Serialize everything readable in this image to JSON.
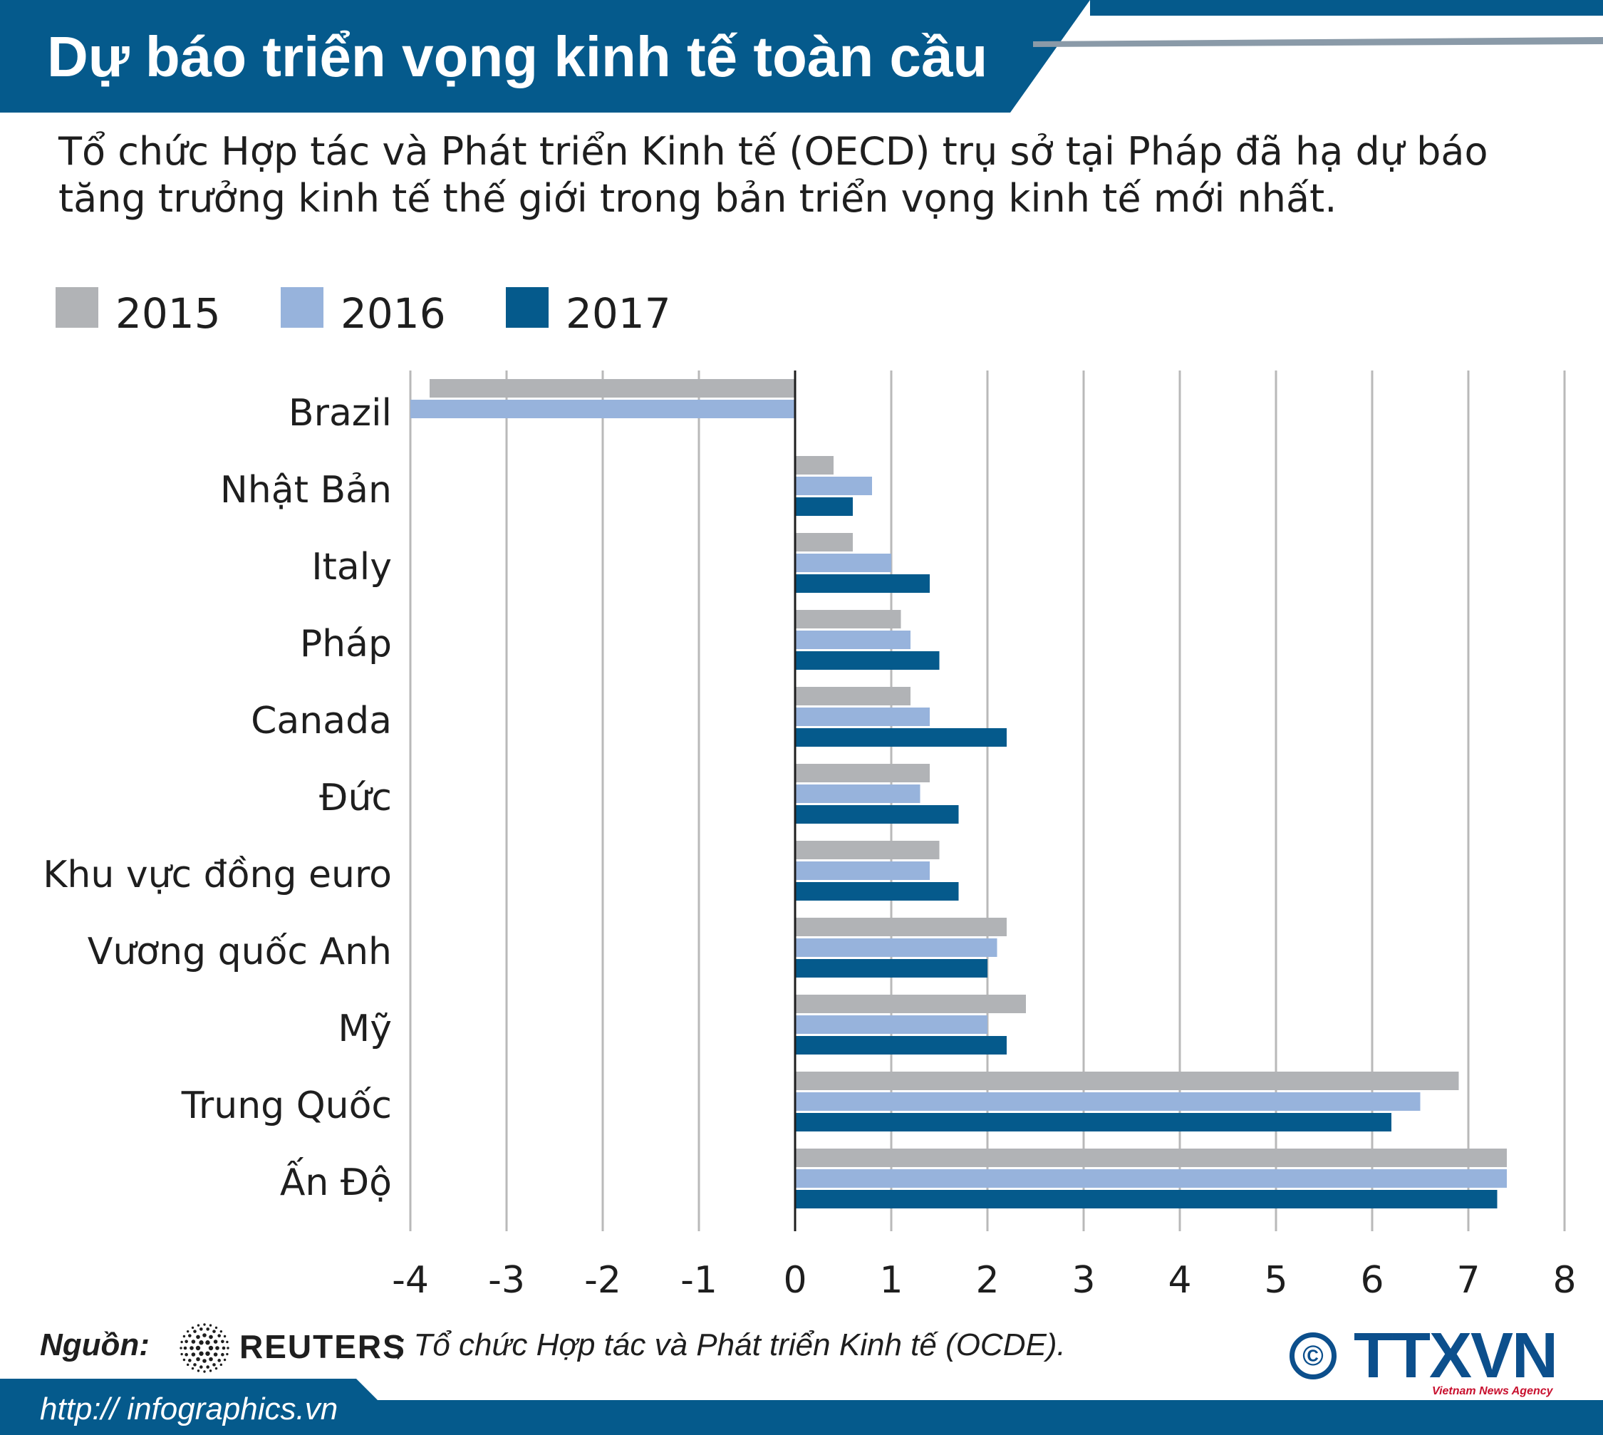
{
  "header": {
    "title": "Dự báo triển vọng kinh tế toàn cầu"
  },
  "subtitle": "Tổ chức Hợp tác và Phát triển Kinh tế (OECD) trụ sở tại Pháp đã hạ dự báo tăng trưởng kinh tế thế giới trong bản triển vọng kinh tế mới nhất.",
  "colors": {
    "header_bg": "#055a8c",
    "header_line": "#8a9aa8",
    "footer_bg": "#055a8c",
    "grid": "#b9b9b9",
    "axis": "#1e1e1e",
    "text": "#1e1e1e"
  },
  "chart_data": {
    "type": "bar",
    "orientation": "horizontal",
    "categories": [
      "Brazil",
      "Nhật Bản",
      "Italy",
      "Pháp",
      "Canada",
      "Đức",
      "Khu vực đồng euro",
      "Vương quốc Anh",
      "Mỹ",
      "Trung Quốc",
      "Ấn Độ"
    ],
    "series": [
      {
        "name": "2015",
        "color": "#b1b3b6",
        "values": [
          -3.8,
          0.4,
          0.6,
          1.1,
          1.2,
          1.4,
          1.5,
          2.2,
          2.4,
          6.9,
          7.4
        ]
      },
      {
        "name": "2016",
        "color": "#97b3dc",
        "values": [
          -4.0,
          0.8,
          1.0,
          1.2,
          1.4,
          1.3,
          1.4,
          2.1,
          2.0,
          6.5,
          7.4
        ]
      },
      {
        "name": "2017",
        "color": "#055a8c",
        "values": [
          null,
          0.6,
          1.4,
          1.5,
          2.2,
          1.7,
          1.7,
          2.0,
          2.2,
          6.2,
          7.3
        ]
      }
    ],
    "xlim": [
      -4,
      8
    ],
    "xticks": [
      "-4",
      "-3",
      "-2",
      "-1",
      "0",
      "1",
      "2",
      "3",
      "4",
      "5",
      "6",
      "7",
      "8"
    ],
    "grid": true,
    "legend_position": "top-left"
  },
  "source": {
    "label": "Nguồn:",
    "logo_icon": "reuters-dots-icon",
    "reuters": "REUTERS",
    "rest": "; Tổ chức Hợp tác và Phát triển Kinh tế (OCDE)."
  },
  "branding": {
    "copyright": "©",
    "agency": "TTXVN",
    "agency_sub": "Vietnam News Agency"
  },
  "footer": {
    "url": "http:// infographics.vn"
  }
}
